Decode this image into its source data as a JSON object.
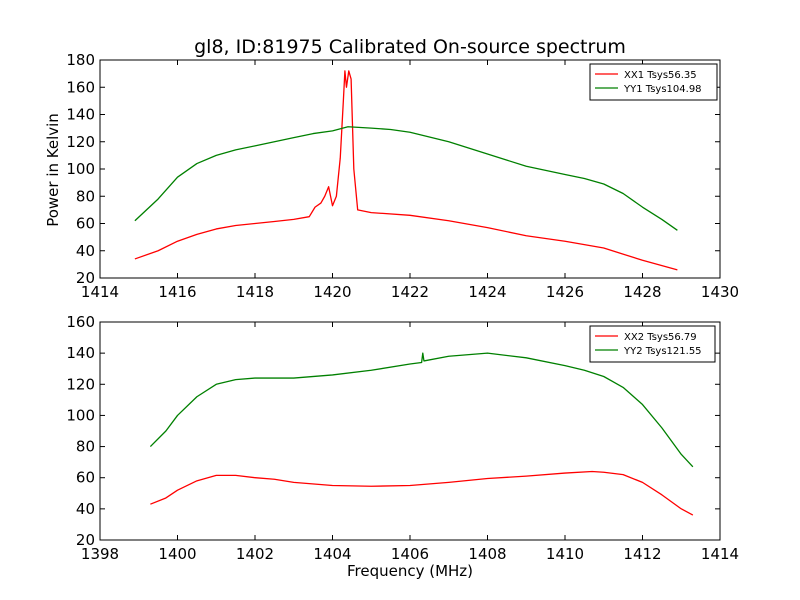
{
  "chart_data": [
    {
      "type": "line",
      "title": "gl8, ID:81975 Calibrated On-source spectrum",
      "ylabel": "Power in Kelvin",
      "xlabel": "",
      "xlim": [
        1414,
        1430
      ],
      "ylim": [
        20,
        180
      ],
      "xticks": [
        1414,
        1416,
        1418,
        1420,
        1422,
        1424,
        1426,
        1428,
        1430
      ],
      "yticks": [
        20,
        40,
        60,
        80,
        100,
        120,
        140,
        160,
        180
      ],
      "legend": "top-right",
      "series": [
        {
          "name": "XX1 Tsys56.35",
          "color": "#ff0000",
          "points": [
            [
              1414.9,
              34
            ],
            [
              1415.5,
              40
            ],
            [
              1416.0,
              47
            ],
            [
              1416.5,
              52
            ],
            [
              1417.0,
              56
            ],
            [
              1417.5,
              58.5
            ],
            [
              1418.0,
              60
            ],
            [
              1418.5,
              61.5
            ],
            [
              1419.0,
              63
            ],
            [
              1419.4,
              65
            ],
            [
              1419.55,
              72
            ],
            [
              1419.7,
              75
            ],
            [
              1419.8,
              80
            ],
            [
              1419.9,
              87
            ],
            [
              1420.0,
              73
            ],
            [
              1420.1,
              80
            ],
            [
              1420.2,
              108
            ],
            [
              1420.28,
              150
            ],
            [
              1420.32,
              172
            ],
            [
              1420.36,
              160
            ],
            [
              1420.42,
              172
            ],
            [
              1420.48,
              166
            ],
            [
              1420.55,
              100
            ],
            [
              1420.65,
              70
            ],
            [
              1421.0,
              68
            ],
            [
              1422.0,
              66
            ],
            [
              1423.0,
              62
            ],
            [
              1424.0,
              57
            ],
            [
              1425.0,
              51
            ],
            [
              1426.0,
              47
            ],
            [
              1427.0,
              42
            ],
            [
              1428.0,
              33
            ],
            [
              1428.9,
              26
            ]
          ]
        },
        {
          "name": "YY1 Tsys104.98",
          "color": "#008000",
          "points": [
            [
              1414.9,
              62
            ],
            [
              1415.5,
              78
            ],
            [
              1416.0,
              94
            ],
            [
              1416.5,
              104
            ],
            [
              1417.0,
              110
            ],
            [
              1417.5,
              114
            ],
            [
              1418.0,
              117
            ],
            [
              1418.5,
              120
            ],
            [
              1419.0,
              123
            ],
            [
              1419.5,
              126
            ],
            [
              1420.0,
              128
            ],
            [
              1420.4,
              131
            ],
            [
              1421.0,
              130
            ],
            [
              1421.5,
              129
            ],
            [
              1422.0,
              127
            ],
            [
              1423.0,
              120
            ],
            [
              1424.0,
              111
            ],
            [
              1425.0,
              102
            ],
            [
              1426.0,
              96
            ],
            [
              1426.5,
              93
            ],
            [
              1427.0,
              89
            ],
            [
              1427.5,
              82
            ],
            [
              1428.0,
              72
            ],
            [
              1428.5,
              63
            ],
            [
              1428.9,
              55
            ]
          ]
        }
      ]
    },
    {
      "type": "line",
      "title": "",
      "xlabel": "Frequency (MHz)",
      "ylabel": "",
      "xlim": [
        1398,
        1414
      ],
      "ylim": [
        20,
        160
      ],
      "xticks": [
        1398,
        1400,
        1402,
        1404,
        1406,
        1408,
        1410,
        1412,
        1414
      ],
      "yticks": [
        20,
        40,
        60,
        80,
        100,
        120,
        140,
        160
      ],
      "legend": "top-right",
      "series": [
        {
          "name": "XX2 Tsys56.79",
          "color": "#ff0000",
          "points": [
            [
              1399.3,
              43
            ],
            [
              1399.7,
              47
            ],
            [
              1400.0,
              52
            ],
            [
              1400.5,
              58
            ],
            [
              1401.0,
              61.5
            ],
            [
              1401.5,
              61.5
            ],
            [
              1402.0,
              60
            ],
            [
              1402.5,
              59
            ],
            [
              1403.0,
              57
            ],
            [
              1404.0,
              55
            ],
            [
              1405.0,
              54.5
            ],
            [
              1406.0,
              55
            ],
            [
              1407.0,
              57
            ],
            [
              1408.0,
              59.5
            ],
            [
              1409.0,
              61
            ],
            [
              1410.0,
              63
            ],
            [
              1410.7,
              64
            ],
            [
              1411.0,
              63.5
            ],
            [
              1411.5,
              62
            ],
            [
              1412.0,
              57
            ],
            [
              1412.5,
              49
            ],
            [
              1413.0,
              40
            ],
            [
              1413.3,
              36
            ]
          ]
        },
        {
          "name": "YY2 Tsys121.55",
          "color": "#008000",
          "points": [
            [
              1399.3,
              80
            ],
            [
              1399.7,
              90
            ],
            [
              1400.0,
              100
            ],
            [
              1400.5,
              112
            ],
            [
              1401.0,
              120
            ],
            [
              1401.5,
              123
            ],
            [
              1402.0,
              124
            ],
            [
              1403.0,
              124
            ],
            [
              1404.0,
              126
            ],
            [
              1405.0,
              129
            ],
            [
              1406.0,
              133
            ],
            [
              1406.3,
              134
            ],
            [
              1406.33,
              140
            ],
            [
              1406.36,
              135
            ],
            [
              1407.0,
              138
            ],
            [
              1408.0,
              140
            ],
            [
              1409.0,
              137
            ],
            [
              1410.0,
              132
            ],
            [
              1410.5,
              129
            ],
            [
              1411.0,
              125
            ],
            [
              1411.5,
              118
            ],
            [
              1412.0,
              107
            ],
            [
              1412.5,
              92
            ],
            [
              1413.0,
              75
            ],
            [
              1413.3,
              67
            ]
          ]
        }
      ]
    }
  ]
}
